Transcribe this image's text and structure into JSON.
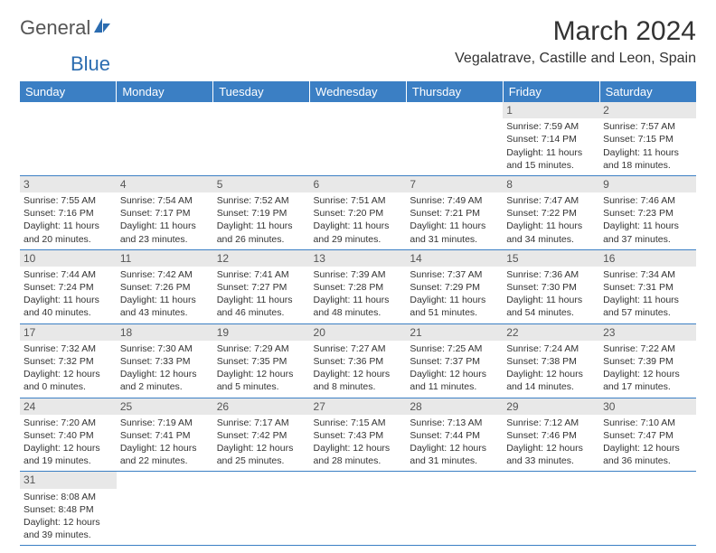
{
  "logo": {
    "text1": "General",
    "text2": "Blue",
    "accent_color": "#2b6cb0"
  },
  "title": "March 2024",
  "location": "Vegalatrave, Castille and Leon, Spain",
  "header_bg": "#3b7fc4",
  "header_fg": "#ffffff",
  "daynum_bg": "#e8e8e8",
  "border_color": "#3b7fc4",
  "fontsize_title": 30,
  "fontsize_location": 16,
  "fontsize_headers": 13,
  "fontsize_cell": 10.5,
  "weekdays": [
    "Sunday",
    "Monday",
    "Tuesday",
    "Wednesday",
    "Thursday",
    "Friday",
    "Saturday"
  ],
  "weeks": [
    [
      null,
      null,
      null,
      null,
      null,
      {
        "n": "1",
        "sr": "Sunrise: 7:59 AM",
        "ss": "Sunset: 7:14 PM",
        "dl1": "Daylight: 11 hours",
        "dl2": "and 15 minutes."
      },
      {
        "n": "2",
        "sr": "Sunrise: 7:57 AM",
        "ss": "Sunset: 7:15 PM",
        "dl1": "Daylight: 11 hours",
        "dl2": "and 18 minutes."
      }
    ],
    [
      {
        "n": "3",
        "sr": "Sunrise: 7:55 AM",
        "ss": "Sunset: 7:16 PM",
        "dl1": "Daylight: 11 hours",
        "dl2": "and 20 minutes."
      },
      {
        "n": "4",
        "sr": "Sunrise: 7:54 AM",
        "ss": "Sunset: 7:17 PM",
        "dl1": "Daylight: 11 hours",
        "dl2": "and 23 minutes."
      },
      {
        "n": "5",
        "sr": "Sunrise: 7:52 AM",
        "ss": "Sunset: 7:19 PM",
        "dl1": "Daylight: 11 hours",
        "dl2": "and 26 minutes."
      },
      {
        "n": "6",
        "sr": "Sunrise: 7:51 AM",
        "ss": "Sunset: 7:20 PM",
        "dl1": "Daylight: 11 hours",
        "dl2": "and 29 minutes."
      },
      {
        "n": "7",
        "sr": "Sunrise: 7:49 AM",
        "ss": "Sunset: 7:21 PM",
        "dl1": "Daylight: 11 hours",
        "dl2": "and 31 minutes."
      },
      {
        "n": "8",
        "sr": "Sunrise: 7:47 AM",
        "ss": "Sunset: 7:22 PM",
        "dl1": "Daylight: 11 hours",
        "dl2": "and 34 minutes."
      },
      {
        "n": "9",
        "sr": "Sunrise: 7:46 AM",
        "ss": "Sunset: 7:23 PM",
        "dl1": "Daylight: 11 hours",
        "dl2": "and 37 minutes."
      }
    ],
    [
      {
        "n": "10",
        "sr": "Sunrise: 7:44 AM",
        "ss": "Sunset: 7:24 PM",
        "dl1": "Daylight: 11 hours",
        "dl2": "and 40 minutes."
      },
      {
        "n": "11",
        "sr": "Sunrise: 7:42 AM",
        "ss": "Sunset: 7:26 PM",
        "dl1": "Daylight: 11 hours",
        "dl2": "and 43 minutes."
      },
      {
        "n": "12",
        "sr": "Sunrise: 7:41 AM",
        "ss": "Sunset: 7:27 PM",
        "dl1": "Daylight: 11 hours",
        "dl2": "and 46 minutes."
      },
      {
        "n": "13",
        "sr": "Sunrise: 7:39 AM",
        "ss": "Sunset: 7:28 PM",
        "dl1": "Daylight: 11 hours",
        "dl2": "and 48 minutes."
      },
      {
        "n": "14",
        "sr": "Sunrise: 7:37 AM",
        "ss": "Sunset: 7:29 PM",
        "dl1": "Daylight: 11 hours",
        "dl2": "and 51 minutes."
      },
      {
        "n": "15",
        "sr": "Sunrise: 7:36 AM",
        "ss": "Sunset: 7:30 PM",
        "dl1": "Daylight: 11 hours",
        "dl2": "and 54 minutes."
      },
      {
        "n": "16",
        "sr": "Sunrise: 7:34 AM",
        "ss": "Sunset: 7:31 PM",
        "dl1": "Daylight: 11 hours",
        "dl2": "and 57 minutes."
      }
    ],
    [
      {
        "n": "17",
        "sr": "Sunrise: 7:32 AM",
        "ss": "Sunset: 7:32 PM",
        "dl1": "Daylight: 12 hours",
        "dl2": "and 0 minutes."
      },
      {
        "n": "18",
        "sr": "Sunrise: 7:30 AM",
        "ss": "Sunset: 7:33 PM",
        "dl1": "Daylight: 12 hours",
        "dl2": "and 2 minutes."
      },
      {
        "n": "19",
        "sr": "Sunrise: 7:29 AM",
        "ss": "Sunset: 7:35 PM",
        "dl1": "Daylight: 12 hours",
        "dl2": "and 5 minutes."
      },
      {
        "n": "20",
        "sr": "Sunrise: 7:27 AM",
        "ss": "Sunset: 7:36 PM",
        "dl1": "Daylight: 12 hours",
        "dl2": "and 8 minutes."
      },
      {
        "n": "21",
        "sr": "Sunrise: 7:25 AM",
        "ss": "Sunset: 7:37 PM",
        "dl1": "Daylight: 12 hours",
        "dl2": "and 11 minutes."
      },
      {
        "n": "22",
        "sr": "Sunrise: 7:24 AM",
        "ss": "Sunset: 7:38 PM",
        "dl1": "Daylight: 12 hours",
        "dl2": "and 14 minutes."
      },
      {
        "n": "23",
        "sr": "Sunrise: 7:22 AM",
        "ss": "Sunset: 7:39 PM",
        "dl1": "Daylight: 12 hours",
        "dl2": "and 17 minutes."
      }
    ],
    [
      {
        "n": "24",
        "sr": "Sunrise: 7:20 AM",
        "ss": "Sunset: 7:40 PM",
        "dl1": "Daylight: 12 hours",
        "dl2": "and 19 minutes."
      },
      {
        "n": "25",
        "sr": "Sunrise: 7:19 AM",
        "ss": "Sunset: 7:41 PM",
        "dl1": "Daylight: 12 hours",
        "dl2": "and 22 minutes."
      },
      {
        "n": "26",
        "sr": "Sunrise: 7:17 AM",
        "ss": "Sunset: 7:42 PM",
        "dl1": "Daylight: 12 hours",
        "dl2": "and 25 minutes."
      },
      {
        "n": "27",
        "sr": "Sunrise: 7:15 AM",
        "ss": "Sunset: 7:43 PM",
        "dl1": "Daylight: 12 hours",
        "dl2": "and 28 minutes."
      },
      {
        "n": "28",
        "sr": "Sunrise: 7:13 AM",
        "ss": "Sunset: 7:44 PM",
        "dl1": "Daylight: 12 hours",
        "dl2": "and 31 minutes."
      },
      {
        "n": "29",
        "sr": "Sunrise: 7:12 AM",
        "ss": "Sunset: 7:46 PM",
        "dl1": "Daylight: 12 hours",
        "dl2": "and 33 minutes."
      },
      {
        "n": "30",
        "sr": "Sunrise: 7:10 AM",
        "ss": "Sunset: 7:47 PM",
        "dl1": "Daylight: 12 hours",
        "dl2": "and 36 minutes."
      }
    ],
    [
      {
        "n": "31",
        "sr": "Sunrise: 8:08 AM",
        "ss": "Sunset: 8:48 PM",
        "dl1": "Daylight: 12 hours",
        "dl2": "and 39 minutes."
      },
      null,
      null,
      null,
      null,
      null,
      null
    ]
  ]
}
